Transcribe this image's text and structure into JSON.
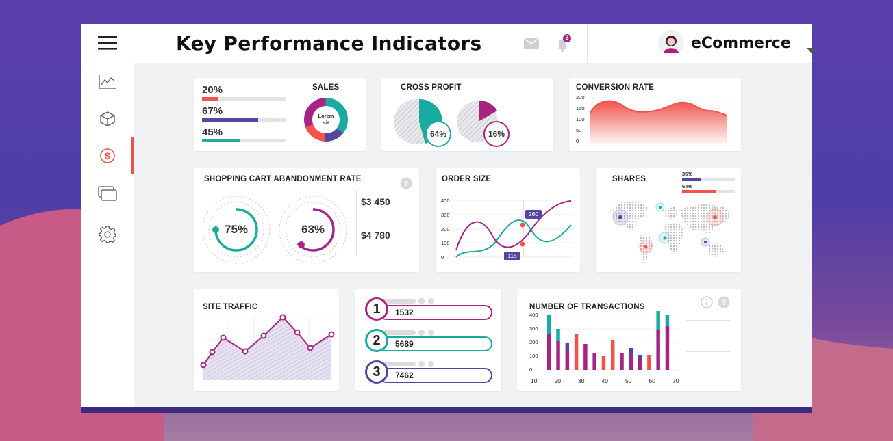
{
  "header": {
    "title": "Key Performance Indicators",
    "notification_count": "3",
    "account_name": "eCommerce"
  },
  "sidebar": {
    "items": [
      "menu-icon",
      "line-chart-icon",
      "box-icon",
      "dollar-icon",
      "cards-icon",
      "gear-icon"
    ],
    "active": "dollar-icon",
    "active_color": "#e8554e"
  },
  "colors": {
    "teal": "#1aaba0",
    "purple": "#56449e",
    "magenta": "#a62584",
    "coral": "#f0544c"
  },
  "sales": {
    "title": "SALES",
    "bars": [
      {
        "label": "20%",
        "value": 0.2,
        "color": "#f0544c"
      },
      {
        "label": "67%",
        "value": 0.67,
        "color": "#56449e"
      },
      {
        "label": "45%",
        "value": 0.45,
        "color": "#1aaba0"
      }
    ],
    "donut_label": "Lorem sit"
  },
  "cross_profit": {
    "title": "CROSS PROFIT",
    "values": [
      "64%",
      "16%"
    ]
  },
  "conversion": {
    "title": "CONVERSION RATE",
    "y_ticks": [
      "200",
      "150",
      "100",
      "50",
      "0"
    ]
  },
  "cart": {
    "title": "SHOPPING CART ABANDONMENT RATE",
    "gauges": [
      {
        "label": "75%",
        "value": 0.75,
        "color": "#1aaba0"
      },
      {
        "label": "63%",
        "value": 0.63,
        "color": "#a62584"
      }
    ],
    "amounts": [
      "$3 450",
      "$4 780"
    ]
  },
  "order_size": {
    "title": "ORDER SIZE",
    "y_ticks": [
      "400",
      "300",
      "200",
      "100",
      "0"
    ],
    "callouts": [
      "260",
      "115"
    ]
  },
  "shares": {
    "title": "SHARES",
    "bars": [
      {
        "label": "35%",
        "value": 0.35,
        "color": "#56449e"
      },
      {
        "label": "64%",
        "value": 0.64,
        "color": "#f0544c"
      }
    ]
  },
  "site_traffic": {
    "title": "SITE TRAFFIC"
  },
  "ranking": [
    {
      "rank": "1",
      "value": "1532",
      "color": "#a62584"
    },
    {
      "rank": "2",
      "value": "5689",
      "color": "#1aaba0"
    },
    {
      "rank": "3",
      "value": "7462",
      "color": "#56449e"
    }
  ],
  "transactions": {
    "title": "NUMBER OF TRANSACTIONS",
    "y_ticks": [
      "400",
      "300",
      "200",
      "100",
      "0"
    ],
    "x_ticks": [
      "10",
      "20",
      "30",
      "40",
      "50",
      "60",
      "70"
    ]
  },
  "chart_data": [
    {
      "type": "bar",
      "title": "NUMBER OF TRANSACTIONS",
      "ylim": [
        0,
        400
      ],
      "x_ticks": [
        "10",
        "20",
        "30",
        "40",
        "50",
        "60",
        "70"
      ],
      "series": [
        {
          "color": "#a62584",
          "values": [
            260,
            210,
            140,
            0,
            190,
            120,
            0,
            0,
            120,
            110,
            70,
            0,
            290,
            320
          ]
        },
        {
          "color": "#f0544c",
          "values": [
            0,
            0,
            0,
            260,
            0,
            0,
            100,
            220,
            0,
            0,
            0,
            110,
            0,
            0
          ]
        },
        {
          "color": "#56449e",
          "values": [
            0,
            0,
            60,
            0,
            0,
            0,
            0,
            0,
            0,
            50,
            40,
            0,
            0,
            0
          ]
        },
        {
          "color": "#1aaba0",
          "values": [
            140,
            90,
            0,
            0,
            0,
            0,
            0,
            0,
            0,
            0,
            0,
            0,
            160,
            80
          ]
        }
      ]
    }
  ]
}
